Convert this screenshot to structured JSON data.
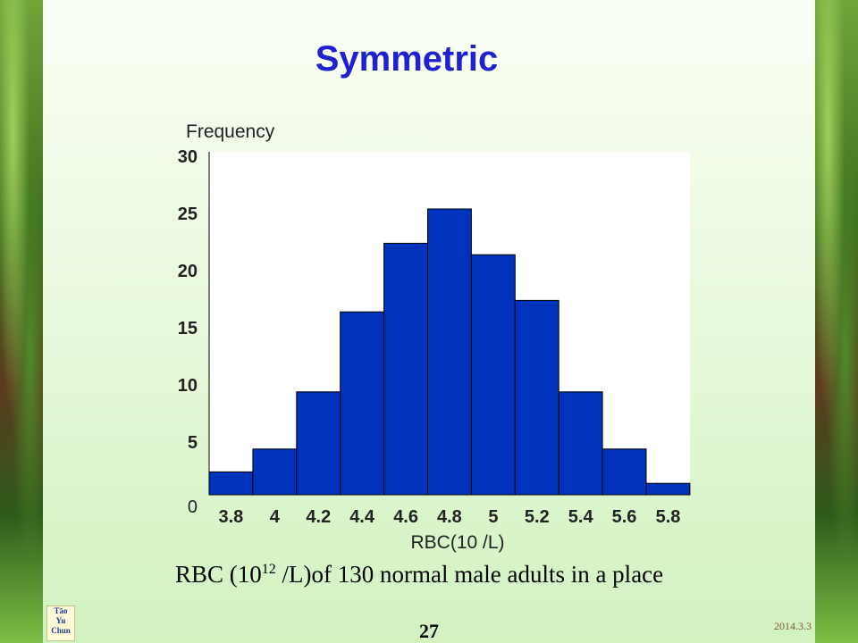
{
  "slide": {
    "title": "Symmetric",
    "caption_prefix": "RBC (10",
    "caption_sup": "12",
    "caption_suffix": " /L)of 130 normal male adults in a place",
    "page_number": "27",
    "date": "2014.3.3",
    "logo_lines": [
      "Tāo",
      "Yu",
      "Chun"
    ]
  },
  "colors": {
    "bar_fill": "#0033bb",
    "bar_stroke": "#000000",
    "title": "#1f20d0"
  },
  "chart_data": {
    "type": "bar",
    "title": "",
    "ylabel": "Frequency",
    "xlabel": "RBC(10 /L)",
    "categories": [
      "3.8",
      "4",
      "4.2",
      "4.4",
      "4.6",
      "4.8",
      "5",
      "5.2",
      "5.4",
      "5.6",
      "5.8"
    ],
    "values": [
      2,
      4,
      9,
      16,
      22,
      25,
      21,
      17,
      9,
      4,
      1
    ],
    "ylim": [
      0,
      30
    ],
    "yticks": [
      "0",
      "5",
      "10",
      "15",
      "20",
      "25",
      "30"
    ],
    "grid": false,
    "legend": "none"
  }
}
